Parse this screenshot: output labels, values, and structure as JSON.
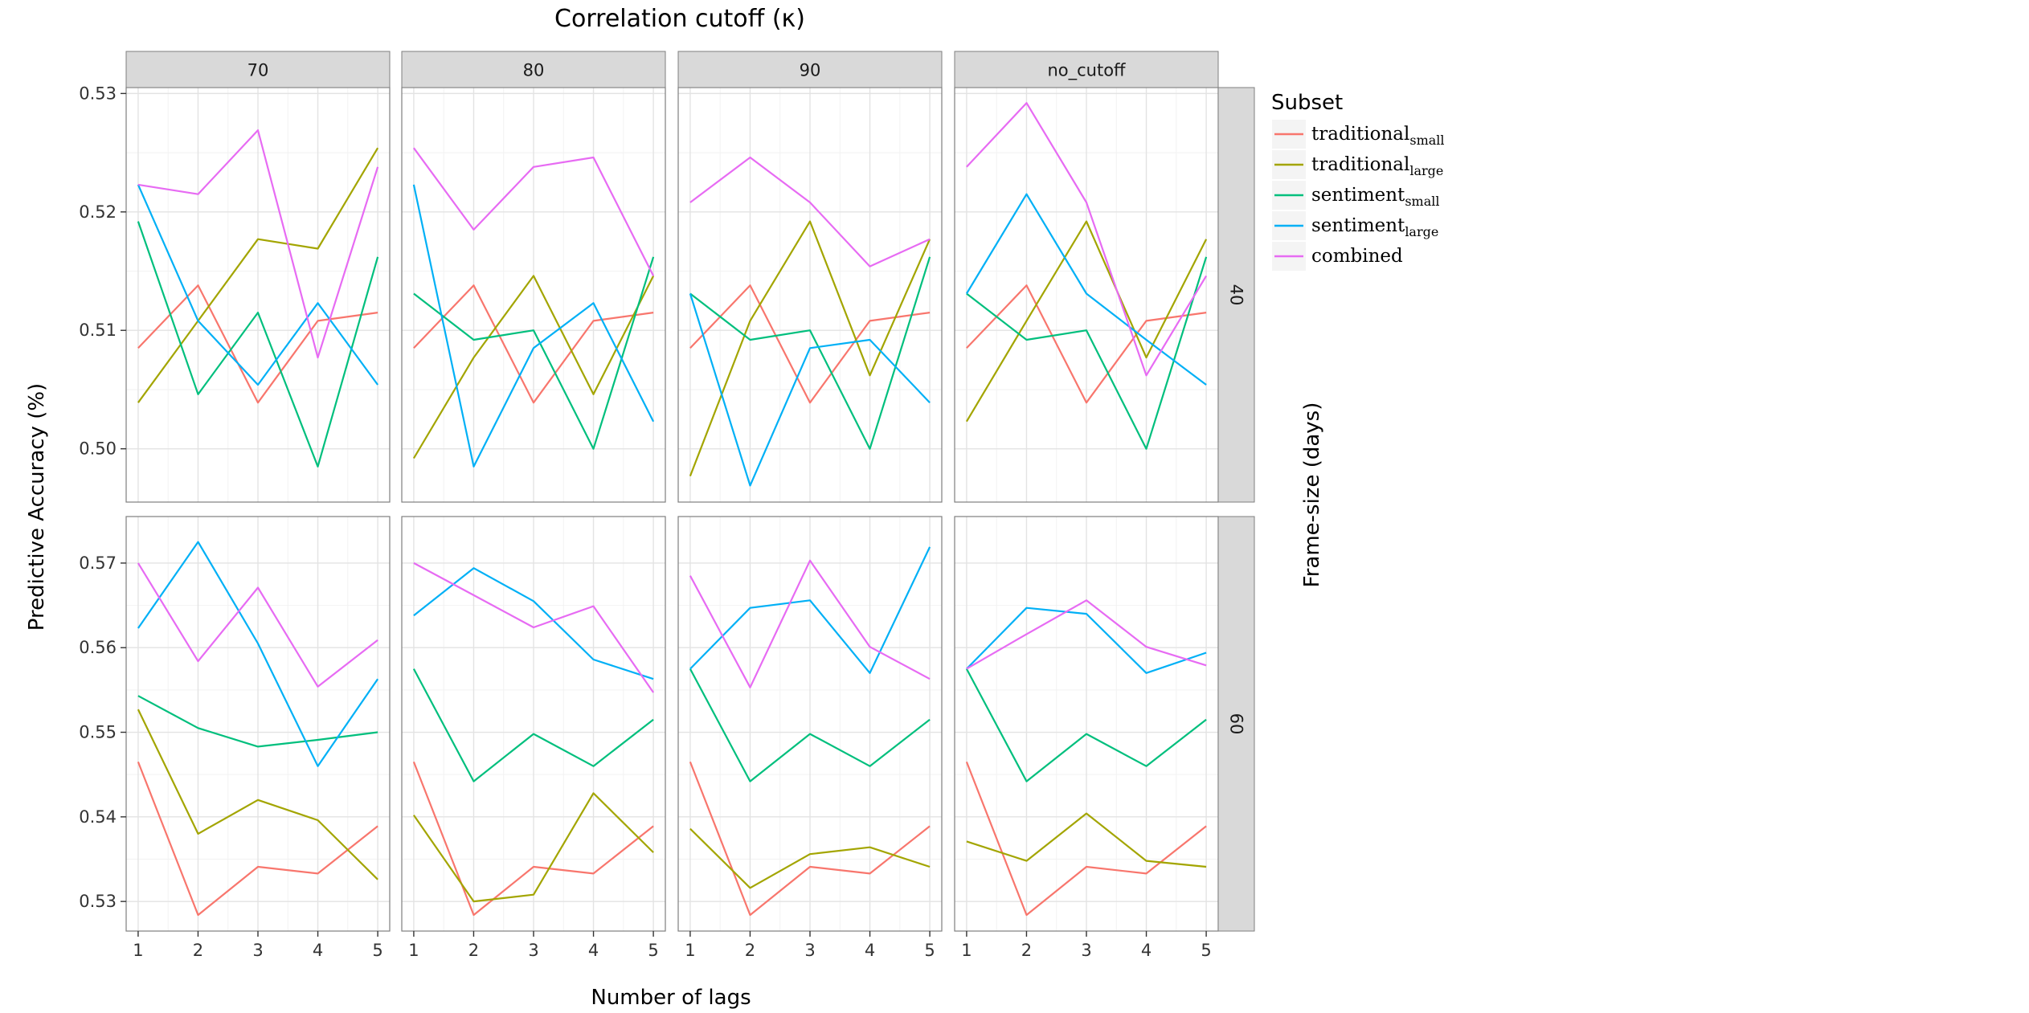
{
  "chart_data": {
    "type": "line",
    "title": "Correlation cutoff (κ)",
    "xlabel": "Number of lags",
    "ylabel": "Predictive Accuracy (%)",
    "right_label": "Frame-size (days)",
    "x": [
      1,
      2,
      3,
      4,
      5
    ],
    "columns": [
      "70",
      "80",
      "90",
      "no_cutoff"
    ],
    "rows": [
      {
        "label": "40",
        "ylim": [
          0.4955,
          0.5305
        ],
        "yticks": [
          0.5,
          0.51,
          0.52,
          0.53
        ],
        "ytick_labels": [
          "0.50",
          "0.51",
          "0.52",
          "0.53"
        ]
      },
      {
        "label": "60",
        "ylim": [
          0.5265,
          0.5755
        ],
        "yticks": [
          0.53,
          0.54,
          0.55,
          0.56,
          0.57
        ],
        "ytick_labels": [
          "0.53",
          "0.54",
          "0.55",
          "0.56",
          "0.57"
        ]
      }
    ],
    "legend": {
      "title": "Subset",
      "position": "right",
      "entries": [
        {
          "id": "trad_small",
          "base": "traditional",
          "sub": "small",
          "color": "#F8766D"
        },
        {
          "id": "trad_large",
          "base": "traditional",
          "sub": "large",
          "color": "#A3A500"
        },
        {
          "id": "sent_small",
          "base": "sentiment",
          "sub": "small",
          "color": "#00BF7D"
        },
        {
          "id": "sent_large",
          "base": "sentiment",
          "sub": "large",
          "color": "#00B0F6"
        },
        {
          "id": "combined",
          "base": "combined",
          "sub": "",
          "color": "#E76BF3"
        }
      ]
    },
    "panels": [
      {
        "row": 0,
        "col": 0,
        "series": {
          "trad_small": [
            0.5085,
            0.5138,
            0.5039,
            0.5108,
            0.5115
          ],
          "trad_large": [
            0.5039,
            0.5108,
            0.5177,
            0.5169,
            0.5254
          ],
          "sent_small": [
            0.5192,
            0.5046,
            0.5115,
            0.4985,
            0.5162
          ],
          "sent_large": [
            0.5223,
            0.5108,
            0.5054,
            0.5123,
            0.5054
          ],
          "combined": [
            0.5223,
            0.5215,
            0.5269,
            0.5077,
            0.5238
          ]
        }
      },
      {
        "row": 0,
        "col": 1,
        "series": {
          "trad_small": [
            0.5085,
            0.5138,
            0.5039,
            0.5108,
            0.5115
          ],
          "trad_large": [
            0.4992,
            0.5077,
            0.5146,
            0.5046,
            0.5146
          ],
          "sent_small": [
            0.5131,
            0.5092,
            0.51,
            0.5,
            0.5162
          ],
          "sent_large": [
            0.5223,
            0.4985,
            0.5085,
            0.5123,
            0.5023
          ],
          "combined": [
            0.5254,
            0.5185,
            0.5238,
            0.5246,
            0.5146
          ]
        }
      },
      {
        "row": 0,
        "col": 2,
        "series": {
          "trad_small": [
            0.5085,
            0.5138,
            0.5039,
            0.5108,
            0.5115
          ],
          "trad_large": [
            0.4977,
            0.5108,
            0.5192,
            0.5062,
            0.5177
          ],
          "sent_small": [
            0.5131,
            0.5092,
            0.51,
            0.5,
            0.5162
          ],
          "sent_large": [
            0.5131,
            0.4969,
            0.5085,
            0.5092,
            0.5039
          ],
          "combined": [
            0.5208,
            0.5246,
            0.5208,
            0.5154,
            0.5177
          ]
        }
      },
      {
        "row": 0,
        "col": 3,
        "series": {
          "trad_small": [
            0.5085,
            0.5138,
            0.5039,
            0.5108,
            0.5115
          ],
          "trad_large": [
            0.5023,
            0.5108,
            0.5192,
            0.5077,
            0.5177
          ],
          "sent_small": [
            0.5131,
            0.5092,
            0.51,
            0.5,
            0.5162
          ],
          "sent_large": [
            0.5131,
            0.5215,
            0.5131,
            0.5092,
            0.5054
          ],
          "combined": [
            0.5238,
            0.5292,
            0.5208,
            0.5062,
            0.5146
          ]
        }
      },
      {
        "row": 1,
        "col": 0,
        "series": {
          "trad_small": [
            0.5465,
            0.5284,
            0.5341,
            0.5333,
            0.5389
          ],
          "trad_large": [
            0.5527,
            0.538,
            0.542,
            0.5396,
            0.5326
          ],
          "sent_small": [
            0.5543,
            0.5505,
            0.5483,
            0.5491,
            0.55
          ],
          "sent_large": [
            0.5623,
            0.5725,
            0.5605,
            0.546,
            0.5563
          ],
          "combined": [
            0.57,
            0.5584,
            0.5671,
            0.5554,
            0.5609
          ]
        }
      },
      {
        "row": 1,
        "col": 1,
        "series": {
          "trad_small": [
            0.5465,
            0.5284,
            0.5341,
            0.5333,
            0.5389
          ],
          "trad_large": [
            0.5402,
            0.53,
            0.5308,
            0.5428,
            0.5358
          ],
          "sent_small": [
            0.5575,
            0.5442,
            0.5498,
            0.546,
            0.5515
          ],
          "sent_large": [
            0.5638,
            0.5694,
            0.5655,
            0.5586,
            0.5563
          ],
          "combined": [
            0.57,
            0.5662,
            0.5624,
            0.5649,
            0.5547
          ]
        }
      },
      {
        "row": 1,
        "col": 2,
        "series": {
          "trad_small": [
            0.5465,
            0.5284,
            0.5341,
            0.5333,
            0.5389
          ],
          "trad_large": [
            0.5386,
            0.5316,
            0.5356,
            0.5364,
            0.5341
          ],
          "sent_small": [
            0.5575,
            0.5442,
            0.5498,
            0.546,
            0.5515
          ],
          "sent_large": [
            0.5575,
            0.5647,
            0.5656,
            0.557,
            0.5719
          ],
          "combined": [
            0.5685,
            0.5553,
            0.5703,
            0.5601,
            0.5563
          ]
        }
      },
      {
        "row": 1,
        "col": 3,
        "series": {
          "trad_small": [
            0.5465,
            0.5284,
            0.5341,
            0.5333,
            0.5389
          ],
          "trad_large": [
            0.5371,
            0.5348,
            0.5404,
            0.5348,
            0.5341
          ],
          "sent_small": [
            0.5575,
            0.5442,
            0.5498,
            0.546,
            0.5515
          ],
          "sent_large": [
            0.5575,
            0.5647,
            0.564,
            0.557,
            0.5594
          ],
          "combined": [
            0.5575,
            0.5616,
            0.5656,
            0.5601,
            0.5579
          ]
        }
      }
    ]
  }
}
